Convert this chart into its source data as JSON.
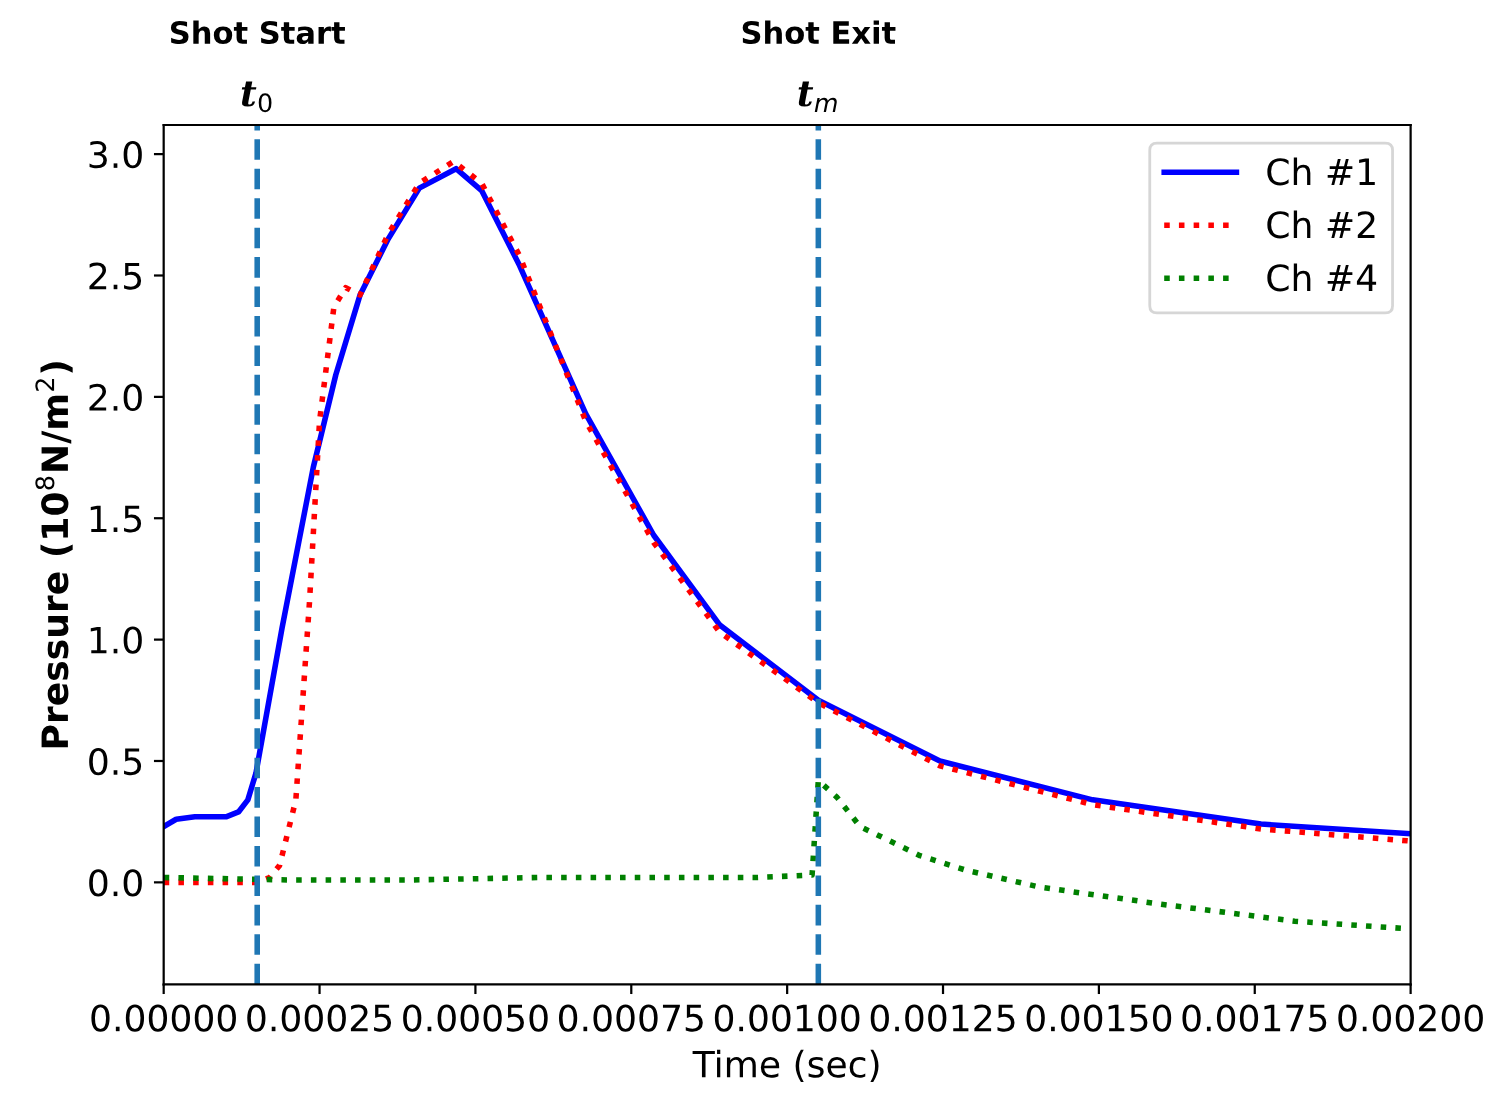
{
  "chart_data": {
    "type": "line",
    "xlabel": "Time (sec)",
    "ylabel": "Pressure (10$^{8}$N/m$^{2}$)",
    "xlim": [
      0,
      0.002
    ],
    "ylim": [
      -0.42,
      3.12
    ],
    "xticks": [
      {
        "value": 0,
        "label": "0.00000"
      },
      {
        "value": 0.00025,
        "label": "0.00025"
      },
      {
        "value": 0.0005,
        "label": "0.00050"
      },
      {
        "value": 0.00075,
        "label": "0.00075"
      },
      {
        "value": 0.001,
        "label": "0.00100"
      },
      {
        "value": 0.00125,
        "label": "0.00125"
      },
      {
        "value": 0.0015,
        "label": "0.00150"
      },
      {
        "value": 0.00175,
        "label": "0.00175"
      },
      {
        "value": 0.002,
        "label": "0.00200"
      }
    ],
    "yticks": [
      {
        "value": 0,
        "label": "0.0"
      },
      {
        "value": 0.5,
        "label": "0.5"
      },
      {
        "value": 1,
        "label": "1.0"
      },
      {
        "value": 1.5,
        "label": "1.5"
      },
      {
        "value": 2,
        "label": "2.0"
      },
      {
        "value": 2.5,
        "label": "2.5"
      },
      {
        "value": 3,
        "label": "3.0"
      }
    ],
    "grid": false,
    "legend": "top right",
    "series": [
      {
        "name": "Ch #1",
        "color": "#0000ff",
        "line_style": "solid",
        "x": [
          0,
          2e-05,
          5e-05,
          0.0001,
          0.00012,
          0.000135,
          0.000148,
          0.00019,
          0.00024,
          0.000276,
          0.000315,
          0.00036,
          0.00041,
          0.000469,
          0.00051,
          0.000571,
          0.000677,
          0.000786,
          0.000892,
          0.00105,
          0.001245,
          0.00149,
          0.00176,
          0.002
        ],
        "values": [
          0.23,
          0.26,
          0.27,
          0.27,
          0.29,
          0.34,
          0.45,
          1.05,
          1.71,
          2.09,
          2.42,
          2.65,
          2.86,
          2.94,
          2.85,
          2.54,
          1.93,
          1.43,
          1.06,
          0.75,
          0.5,
          0.34,
          0.24,
          0.2
        ]
      },
      {
        "name": "Ch #2",
        "color": "#ff0000",
        "line_style": "dotted",
        "x": [
          0,
          0.00015,
          0.00017,
          0.000186,
          0.000212,
          0.000234,
          0.00025,
          0.000273,
          0.000292,
          0.000315,
          0.00036,
          0.00041,
          0.000465,
          0.00051,
          0.000571,
          0.000677,
          0.000786,
          0.000892,
          0.00105,
          0.001245,
          0.00149,
          0.00176,
          0.002
        ],
        "values": [
          0.0,
          0.0,
          0.02,
          0.07,
          0.34,
          1.16,
          1.9,
          2.37,
          2.45,
          2.42,
          2.67,
          2.88,
          2.97,
          2.88,
          2.58,
          1.9,
          1.4,
          1.03,
          0.74,
          0.48,
          0.32,
          0.22,
          0.17
        ]
      },
      {
        "name": "Ch #4",
        "color": "#008000",
        "line_style": "dotted",
        "x": [
          0,
          0.0002,
          0.0004,
          0.0006,
          0.0008,
          0.00095,
          0.00104,
          0.00105,
          0.00108,
          0.001117,
          0.001213,
          0.001287,
          0.001406,
          0.0016,
          0.001814,
          0.00199
        ],
        "values": [
          0.02,
          0.01,
          0.01,
          0.02,
          0.02,
          0.02,
          0.03,
          0.42,
          0.35,
          0.23,
          0.11,
          0.05,
          -0.02,
          -0.09,
          -0.16,
          -0.19
        ]
      }
    ],
    "ref_lines": [
      {
        "axis": "x",
        "value": 0.00015,
        "label": "Shot Start\nt$_{0}$",
        "color": "#1f77b4",
        "line_style": "dashed"
      },
      {
        "axis": "x",
        "value": 0.00105,
        "label": "Shot Exit\nt$_{m}$",
        "color": "#1f77b4",
        "line_style": "dashed"
      }
    ]
  }
}
